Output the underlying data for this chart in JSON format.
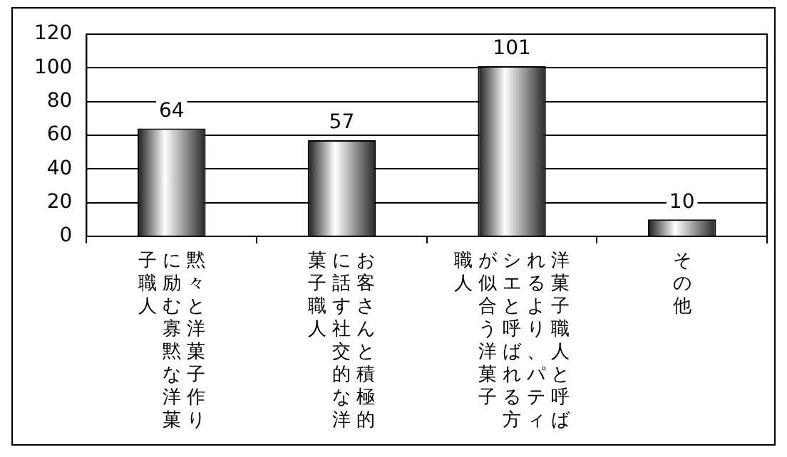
{
  "chart_data": {
    "type": "bar",
    "categories": [
      "黙々と洋菓子作りに励む寡黙な洋菓子職人",
      "お客さんと積極的に話す社交的な洋菓子職人",
      "洋菓子職人と呼ばれるより、パティシエと呼ばれる方が似合う洋菓子職人",
      "その他"
    ],
    "values": [
      64,
      57,
      101,
      10
    ],
    "color": "#808080",
    "ylim": [
      0,
      120
    ],
    "yticks": [
      0,
      20,
      40,
      60,
      80,
      100,
      120
    ],
    "grid": "y",
    "data_labels": true
  }
}
